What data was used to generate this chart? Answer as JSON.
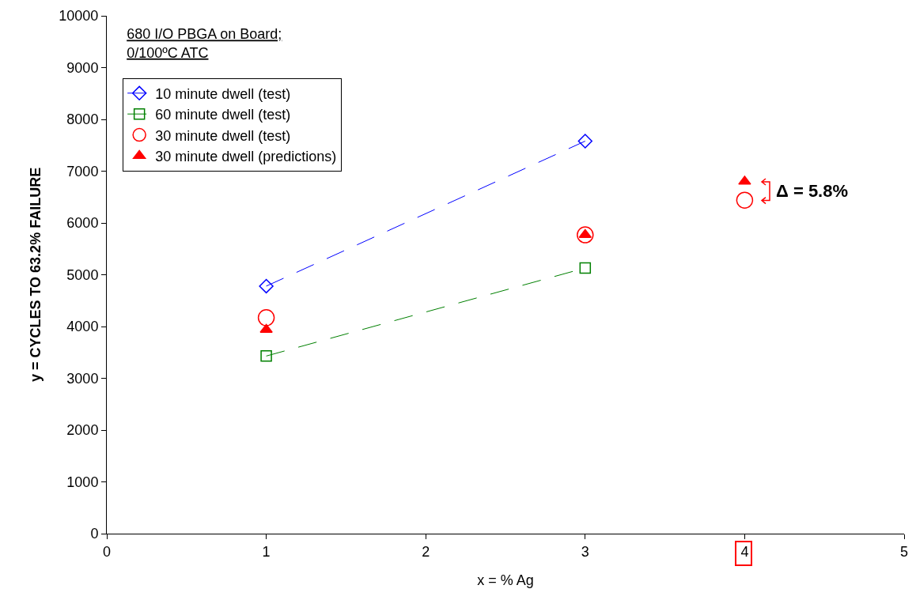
{
  "chart_data": {
    "type": "line",
    "title": "680 I/O PBGA on Board;\n0/100ºC ATC",
    "xlabel": "x = % Ag",
    "ylabel": "y = CYCLES TO 63.2% FAILURE",
    "xlim": [
      0,
      5
    ],
    "xticks": [
      0,
      1,
      2,
      3,
      4,
      5
    ],
    "ylim": [
      0,
      10000
    ],
    "yticks": [
      0,
      1000,
      2000,
      3000,
      4000,
      5000,
      6000,
      7000,
      8000,
      9000,
      10000
    ],
    "grid": false,
    "legend": "top left",
    "line_style": "dashed",
    "series": [
      {
        "name": "10 minute dwell (test)",
        "marker": "diamond",
        "color": "#0000ff",
        "x": [
          1,
          3
        ],
        "values": [
          4780,
          7580
        ]
      },
      {
        "name": "60 minute dwell (test)",
        "marker": "square",
        "color": "#008000",
        "x": [
          1,
          3
        ],
        "values": [
          3430,
          5130
        ]
      },
      {
        "name": "30 minute dwell (test)",
        "type": "scatter",
        "marker": "circle",
        "color": "#ff0000",
        "x": [
          1,
          3,
          4
        ],
        "values": [
          4170,
          5770,
          6440
        ]
      },
      {
        "name": "30 minute dwell (predictions)",
        "type": "scatter",
        "marker": "triangle",
        "color": "#ff0000",
        "x": [
          1,
          3,
          4
        ],
        "values": [
          3940,
          5770,
          6800
        ]
      }
    ],
    "annotations": [
      {
        "text": "Δ = 5.8%",
        "x": 4,
        "y": 6800
      }
    ]
  }
}
